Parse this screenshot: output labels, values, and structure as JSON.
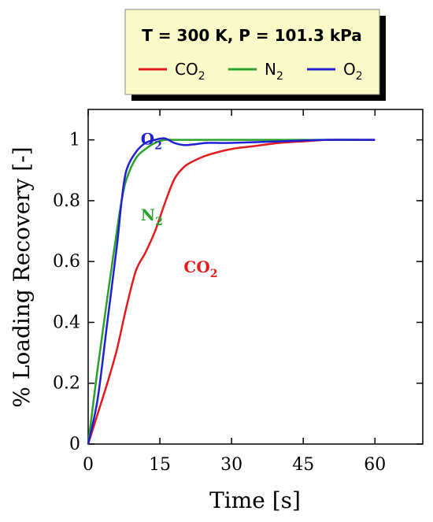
{
  "chart_data": {
    "type": "line",
    "title": "T = 300 K, P = 101.3 kPa",
    "xlabel": "Time [s]",
    "ylabel": "% Loading Recovery [-]",
    "xlim": [
      0,
      70
    ],
    "ylim": [
      0,
      1.1
    ],
    "xticks": [
      "0",
      "15",
      "30",
      "45",
      "60"
    ],
    "yticks": [
      "0",
      "0.2",
      "0.4",
      "0.6",
      "0.8",
      "1"
    ],
    "grid": false,
    "legend_position": "top (outside plot, boxed with shadow)",
    "series": [
      {
        "name": "CO2",
        "label_main": "CO",
        "label_sub": "2",
        "color": "#e41a1c",
        "x": [
          0,
          2,
          4,
          6,
          8,
          10,
          12,
          14,
          16,
          18,
          20,
          22,
          25,
          30,
          35,
          40,
          45,
          50,
          55,
          60
        ],
        "y": [
          0,
          0.1,
          0.2,
          0.31,
          0.45,
          0.57,
          0.63,
          0.7,
          0.79,
          0.87,
          0.91,
          0.93,
          0.95,
          0.97,
          0.98,
          0.99,
          0.995,
          1.0,
          1.0,
          1.0
        ]
      },
      {
        "name": "N2",
        "label_main": "N",
        "label_sub": "2",
        "color": "#2ca02c",
        "x": [
          0,
          2,
          4,
          6,
          7,
          8,
          10,
          12,
          14,
          16,
          18,
          20,
          25,
          30,
          40,
          50,
          60
        ],
        "y": [
          0,
          0.25,
          0.48,
          0.7,
          0.8,
          0.87,
          0.94,
          0.97,
          0.99,
          1.0,
          1.0,
          1.0,
          1.0,
          1.0,
          1.0,
          1.0,
          1.0
        ]
      },
      {
        "name": "O2",
        "label_main": "O",
        "label_sub": "2",
        "color": "#1f1fd6",
        "x": [
          0,
          2,
          4,
          6,
          7,
          8,
          10,
          12,
          14,
          16,
          18,
          20,
          22,
          25,
          30,
          40,
          50,
          60
        ],
        "y": [
          0,
          0.15,
          0.4,
          0.65,
          0.8,
          0.9,
          0.96,
          0.99,
          1.0,
          1.005,
          0.99,
          0.983,
          0.985,
          0.99,
          0.99,
          0.995,
          1.0,
          1.0
        ]
      }
    ],
    "annotations": [
      {
        "main": "O",
        "sub": "2",
        "series": "O2",
        "x": 11,
        "y": 1.0
      },
      {
        "main": "N",
        "sub": "2",
        "series": "N2",
        "x": 11,
        "y": 0.75
      },
      {
        "main": "CO",
        "sub": "2",
        "series": "CO2",
        "x": 20,
        "y": 0.58
      }
    ]
  }
}
